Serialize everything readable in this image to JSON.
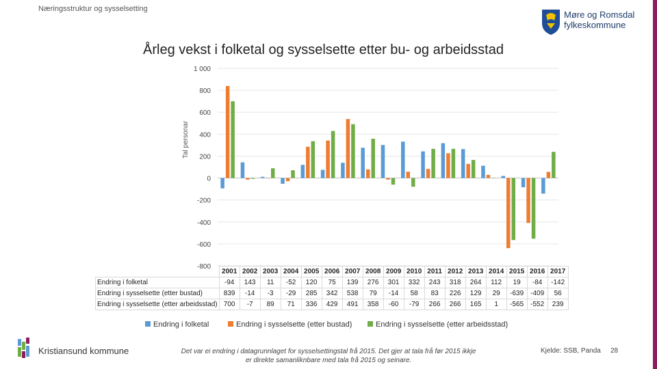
{
  "header": {
    "section_title": "Næringsstruktur og sysselsetting",
    "logo_line1": "Møre og Romsdal",
    "logo_line2": "fylkeskommune"
  },
  "chart_data": {
    "type": "bar",
    "title": "Årleg vekst i folketal og sysselsette etter bu- og arbeidsstad",
    "ylabel": "Tal personar",
    "xlabel": "",
    "ylim": [
      -800,
      1000
    ],
    "ytick_step": 200,
    "ytick_labels": [
      "1 000",
      "800",
      "600",
      "400",
      "200",
      "0",
      "-200",
      "-400",
      "-600",
      "-800"
    ],
    "categories": [
      "2001",
      "2002",
      "2003",
      "2004",
      "2005",
      "2006",
      "2007",
      "2008",
      "2009",
      "2010",
      "2011",
      "2012",
      "2013",
      "2014",
      "2015",
      "2016",
      "2017"
    ],
    "series": [
      {
        "name": "Endring i folketal",
        "color": "#5b9bd5",
        "values": [
          -94,
          143,
          11,
          -52,
          120,
          75,
          139,
          276,
          301,
          332,
          243,
          318,
          264,
          112,
          19,
          -84,
          -142
        ]
      },
      {
        "name": "Endring i sysselsette (etter bustad)",
        "color": "#ed7d31",
        "values": [
          839,
          -14,
          -3,
          -29,
          285,
          342,
          538,
          79,
          -14,
          58,
          83,
          226,
          129,
          29,
          -639,
          -409,
          56
        ]
      },
      {
        "name": "Endring i sysselsette (etter arbeidsstad)",
        "color": "#70ad47",
        "values": [
          700,
          -7,
          89,
          71,
          336,
          429,
          491,
          358,
          -60,
          -79,
          266,
          266,
          165,
          1,
          -565,
          -552,
          239
        ]
      }
    ],
    "table_row_labels": [
      "Endring i folketal",
      "Endring i sysselsette (etter bustad)",
      "Endring i sysselsette (etter arbeidsstad)"
    ],
    "grid": true,
    "legend": "bottom"
  },
  "footer": {
    "org": "Kristiansund kommune",
    "note_line1": "Det var ei endring i datagrunnlaget for sysselsettingstal frå 2015. Det gjer at tala frå før 2015 ikkje",
    "note_line2": "er direkte samanliknbare med tala frå 2015 og seinare.",
    "source": "Kjelde: SSB, Panda",
    "page": "28"
  }
}
